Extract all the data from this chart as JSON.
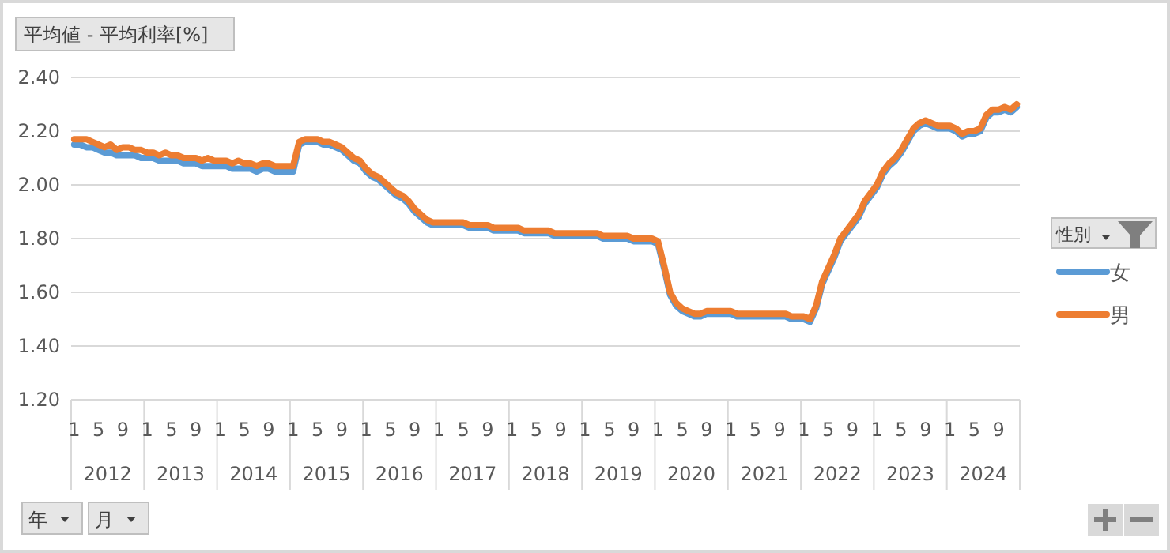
{
  "chart_data": {
    "type": "line",
    "title": "平均値 - 平均利率[%]",
    "legend_title": "性別",
    "legend": "right",
    "grid": "y",
    "line_style": "solid",
    "marker": "none",
    "categories": [
      "1",
      null,
      null,
      null,
      "5",
      null,
      null,
      null,
      "9",
      null,
      null,
      null,
      "1",
      null,
      null,
      null,
      "5",
      null,
      null,
      null,
      "9",
      null,
      null,
      null,
      "1",
      null,
      null,
      null,
      "5",
      null,
      null,
      null,
      "9",
      null,
      null,
      null,
      "1",
      null,
      null,
      null,
      "5",
      null,
      null,
      null,
      "9",
      null,
      null,
      null,
      "1",
      null,
      null,
      null,
      "5",
      null,
      null,
      null,
      "9",
      null,
      null,
      null,
      "1",
      null,
      null,
      null,
      "5",
      null,
      null,
      null,
      "9",
      null,
      null,
      null,
      "1",
      null,
      null,
      null,
      "5",
      null,
      null,
      null,
      "9",
      null,
      null,
      null,
      "1",
      null,
      null,
      null,
      "5",
      null,
      null,
      null,
      "9",
      null,
      null,
      null,
      "1",
      null,
      null,
      null,
      "5",
      null,
      null,
      null,
      "9",
      null,
      null,
      null,
      "1",
      null,
      null,
      null,
      "5",
      null,
      null,
      null,
      "9",
      null,
      null,
      null,
      "1",
      null,
      null,
      null,
      "5",
      null,
      null,
      null,
      "9",
      null,
      null,
      null,
      "1",
      null,
      null,
      null,
      "5",
      null,
      null,
      null,
      "9",
      null,
      null,
      null,
      "1",
      null,
      null,
      null,
      "5",
      null,
      null,
      null,
      "9",
      null,
      null,
      null
    ],
    "ylim": [
      1.2,
      2.4
    ],
    "yticks": [
      {
        "value": 1.2,
        "label": "1.20"
      },
      {
        "value": 1.4,
        "label": "1.40"
      },
      {
        "value": 1.6,
        "label": "1.60"
      },
      {
        "value": 1.8,
        "label": "1.80"
      },
      {
        "value": 2.0,
        "label": "2.00"
      },
      {
        "value": 2.2,
        "label": "2.20"
      },
      {
        "value": 2.4,
        "label": "2.40"
      }
    ],
    "annotations": [
      "2012",
      "2013",
      "2014",
      "2015",
      "2016",
      "2017",
      "2018",
      "2019",
      "2020",
      "2021",
      "2022",
      "2023",
      "2024",
      "年",
      "月"
    ],
    "series": [
      {
        "name": "女",
        "color": "#5b9bd5",
        "values": [
          2.15,
          2.15,
          2.14,
          2.14,
          2.13,
          2.12,
          2.12,
          2.11,
          2.11,
          2.11,
          2.11,
          2.1,
          2.1,
          2.1,
          2.09,
          2.09,
          2.09,
          2.09,
          2.08,
          2.08,
          2.08,
          2.07,
          2.07,
          2.07,
          2.07,
          2.07,
          2.06,
          2.06,
          2.06,
          2.06,
          2.05,
          2.06,
          2.06,
          2.05,
          2.05,
          2.05,
          2.05,
          2.15,
          2.16,
          2.16,
          2.16,
          2.15,
          2.15,
          2.14,
          2.13,
          2.11,
          2.09,
          2.08,
          2.05,
          2.03,
          2.02,
          2.0,
          1.98,
          1.96,
          1.95,
          1.93,
          1.9,
          1.88,
          1.86,
          1.85,
          1.85,
          1.85,
          1.85,
          1.85,
          1.85,
          1.84,
          1.84,
          1.84,
          1.84,
          1.83,
          1.83,
          1.83,
          1.83,
          1.83,
          1.82,
          1.82,
          1.82,
          1.82,
          1.82,
          1.81,
          1.81,
          1.81,
          1.81,
          1.81,
          1.81,
          1.81,
          1.81,
          1.8,
          1.8,
          1.8,
          1.8,
          1.8,
          1.79,
          1.79,
          1.79,
          1.79,
          1.78,
          1.69,
          1.59,
          1.55,
          1.53,
          1.52,
          1.51,
          1.51,
          1.52,
          1.52,
          1.52,
          1.52,
          1.52,
          1.51,
          1.51,
          1.51,
          1.51,
          1.51,
          1.51,
          1.51,
          1.51,
          1.51,
          1.5,
          1.5,
          1.5,
          1.49,
          1.54,
          1.63,
          1.68,
          1.73,
          1.79,
          1.82,
          1.85,
          1.88,
          1.93,
          1.96,
          1.99,
          2.04,
          2.07,
          2.09,
          2.12,
          2.16,
          2.2,
          2.22,
          2.23,
          2.22,
          2.21,
          2.21,
          2.21,
          2.2,
          2.18,
          2.19,
          2.19,
          2.2,
          2.25,
          2.27,
          2.27,
          2.28,
          2.27,
          2.29
        ]
      },
      {
        "name": "男",
        "color": "#ed7d31",
        "values": [
          2.17,
          2.17,
          2.17,
          2.16,
          2.15,
          2.14,
          2.15,
          2.13,
          2.14,
          2.14,
          2.13,
          2.13,
          2.12,
          2.12,
          2.11,
          2.12,
          2.11,
          2.11,
          2.1,
          2.1,
          2.1,
          2.09,
          2.1,
          2.09,
          2.09,
          2.09,
          2.08,
          2.09,
          2.08,
          2.08,
          2.07,
          2.08,
          2.08,
          2.07,
          2.07,
          2.07,
          2.07,
          2.16,
          2.17,
          2.17,
          2.17,
          2.16,
          2.16,
          2.15,
          2.14,
          2.12,
          2.1,
          2.09,
          2.06,
          2.04,
          2.03,
          2.01,
          1.99,
          1.97,
          1.96,
          1.94,
          1.91,
          1.89,
          1.87,
          1.86,
          1.86,
          1.86,
          1.86,
          1.86,
          1.86,
          1.85,
          1.85,
          1.85,
          1.85,
          1.84,
          1.84,
          1.84,
          1.84,
          1.84,
          1.83,
          1.83,
          1.83,
          1.83,
          1.83,
          1.82,
          1.82,
          1.82,
          1.82,
          1.82,
          1.82,
          1.82,
          1.82,
          1.81,
          1.81,
          1.81,
          1.81,
          1.81,
          1.8,
          1.8,
          1.8,
          1.8,
          1.79,
          1.7,
          1.6,
          1.56,
          1.54,
          1.53,
          1.52,
          1.52,
          1.53,
          1.53,
          1.53,
          1.53,
          1.53,
          1.52,
          1.52,
          1.52,
          1.52,
          1.52,
          1.52,
          1.52,
          1.52,
          1.52,
          1.51,
          1.51,
          1.51,
          1.5,
          1.55,
          1.64,
          1.69,
          1.74,
          1.8,
          1.83,
          1.86,
          1.89,
          1.94,
          1.97,
          2.0,
          2.05,
          2.08,
          2.1,
          2.13,
          2.17,
          2.21,
          2.23,
          2.24,
          2.23,
          2.22,
          2.22,
          2.22,
          2.21,
          2.19,
          2.2,
          2.2,
          2.21,
          2.26,
          2.28,
          2.28,
          2.29,
          2.28,
          2.3
        ]
      }
    ]
  }
}
